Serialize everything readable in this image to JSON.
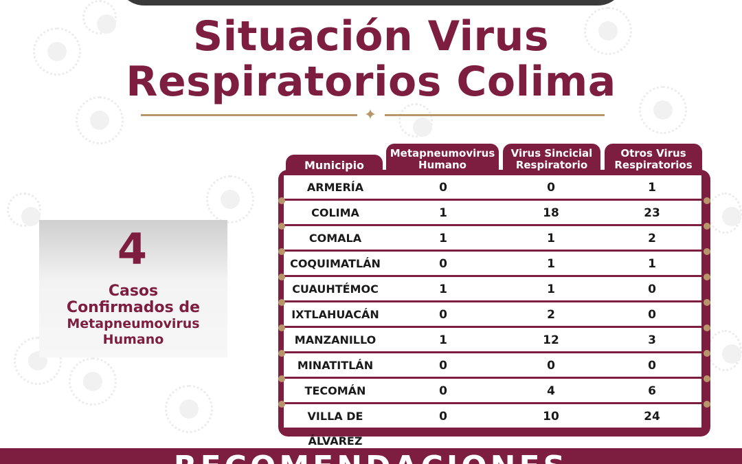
{
  "title": {
    "line1": "Situación Virus",
    "line2": "Respiratorios Colima"
  },
  "stat": {
    "number": "4",
    "label_line1": "Casos",
    "label_line2": "Confirmados de",
    "label_line3": "Metapneumovirus",
    "label_line4": "Humano"
  },
  "table": {
    "headers": {
      "municipio": "Municipio",
      "col1_line1": "Metapneumovirus",
      "col1_line2": "Humano",
      "col2_line1": "Virus Sincicial",
      "col2_line2": "Respiratorio",
      "col3_line1": "Otros Virus",
      "col3_line2": "Respiratorios"
    },
    "rows": [
      {
        "municipio": "ARMERÍA",
        "metapneumovirus": "0",
        "vsr": "0",
        "otros": "1"
      },
      {
        "municipio": "COLIMA",
        "metapneumovirus": "1",
        "vsr": "18",
        "otros": "23"
      },
      {
        "municipio": "COMALA",
        "metapneumovirus": "1",
        "vsr": "1",
        "otros": "2"
      },
      {
        "municipio": "COQUIMATLÁN",
        "metapneumovirus": "0",
        "vsr": "1",
        "otros": "1"
      },
      {
        "municipio": "CUAUHTÉMOC",
        "metapneumovirus": "1",
        "vsr": "1",
        "otros": "0"
      },
      {
        "municipio": "IXTLAHUACÁN",
        "metapneumovirus": "0",
        "vsr": "2",
        "otros": "0"
      },
      {
        "municipio": "MANZANILLO",
        "metapneumovirus": "1",
        "vsr": "12",
        "otros": "3"
      },
      {
        "municipio": "MINATITLÁN",
        "metapneumovirus": "0",
        "vsr": "0",
        "otros": "0"
      },
      {
        "municipio": "TECOMÁN",
        "metapneumovirus": "0",
        "vsr": "4",
        "otros": "6"
      },
      {
        "municipio": "VILLA DE ÁLVAREZ",
        "metapneumovirus": "0",
        "vsr": "10",
        "otros": "24"
      }
    ]
  },
  "banner": {
    "text": "RECOMENDACIONES"
  },
  "colors": {
    "brand": "#7d1d3f",
    "accent_gold": "#b8956a"
  }
}
